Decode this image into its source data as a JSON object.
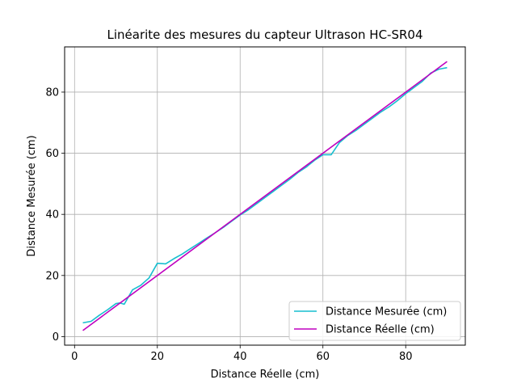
{
  "chart_data": {
    "type": "line",
    "title": "Linéarite des mesures du capteur Ultrason HC-SR04",
    "xlabel": "Distance Réelle (cm)",
    "ylabel": "Distance Mesurée (cm)",
    "xlim": [
      -2.4,
      94.4
    ],
    "ylim": [
      -2.8,
      94.8
    ],
    "xticks": [
      0,
      20,
      40,
      60,
      80
    ],
    "yticks": [
      0,
      20,
      40,
      60,
      80
    ],
    "grid": true,
    "legend_position": "lower-right",
    "series": [
      {
        "name": "Distance Mesurée (cm)",
        "color": "#17becf",
        "x": [
          2,
          4,
          6,
          8,
          10,
          11,
          12,
          14,
          16,
          18,
          20,
          22,
          24,
          26,
          28,
          30,
          32,
          34,
          36,
          38,
          40,
          42,
          44,
          46,
          48,
          50,
          52,
          54,
          56,
          58,
          60,
          62,
          64,
          66,
          68,
          70,
          72,
          74,
          76,
          78,
          80,
          82,
          84,
          86,
          88,
          90
        ],
        "y": [
          4.5,
          5,
          7,
          8.8,
          10.8,
          11,
          10.6,
          15.3,
          16.8,
          19.2,
          24,
          23.8,
          25.5,
          27,
          28.8,
          30.5,
          32.3,
          34,
          35.8,
          37.8,
          39.8,
          41.5,
          43.5,
          45.5,
          47.5,
          49.5,
          51.5,
          53.7,
          55.5,
          57.7,
          59.5,
          59.5,
          63.5,
          65.8,
          67.5,
          69.5,
          71.5,
          73.5,
          75.2,
          77.2,
          79.5,
          81.5,
          83.5,
          86.2,
          87.5,
          88
        ]
      },
      {
        "name": "Distance Réelle (cm)",
        "color": "#bf00bf",
        "x": [
          2,
          90
        ],
        "y": [
          2,
          90
        ]
      }
    ]
  }
}
